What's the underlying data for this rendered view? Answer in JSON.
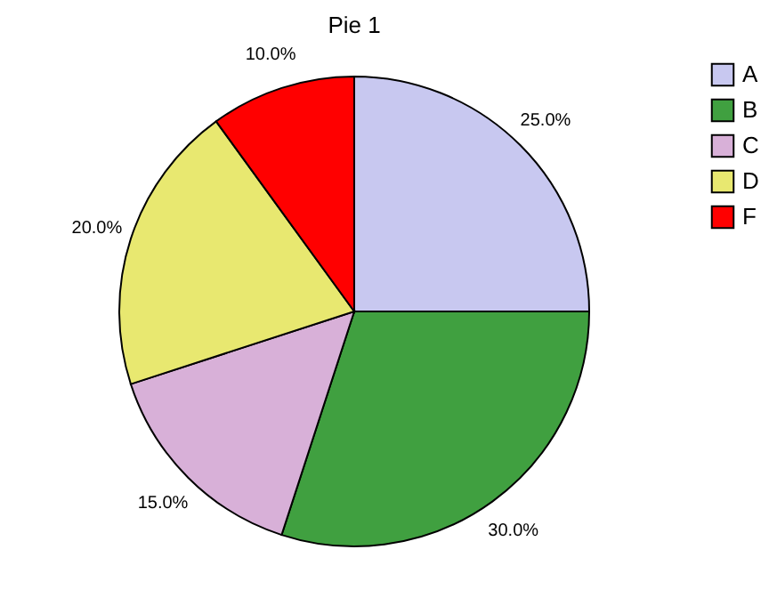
{
  "chart_data": {
    "type": "pie",
    "title": "Pie 1",
    "categories": [
      "A",
      "B",
      "C",
      "D",
      "F"
    ],
    "values": [
      25,
      30,
      15,
      20,
      10
    ],
    "colors": [
      "#c8c8f0",
      "#40a040",
      "#d8b0d8",
      "#e8e870",
      "#ff0000"
    ],
    "value_labels": [
      "25.0%",
      "30.0%",
      "15.0%",
      "20.0%",
      "10.0%"
    ],
    "legend": "right"
  }
}
